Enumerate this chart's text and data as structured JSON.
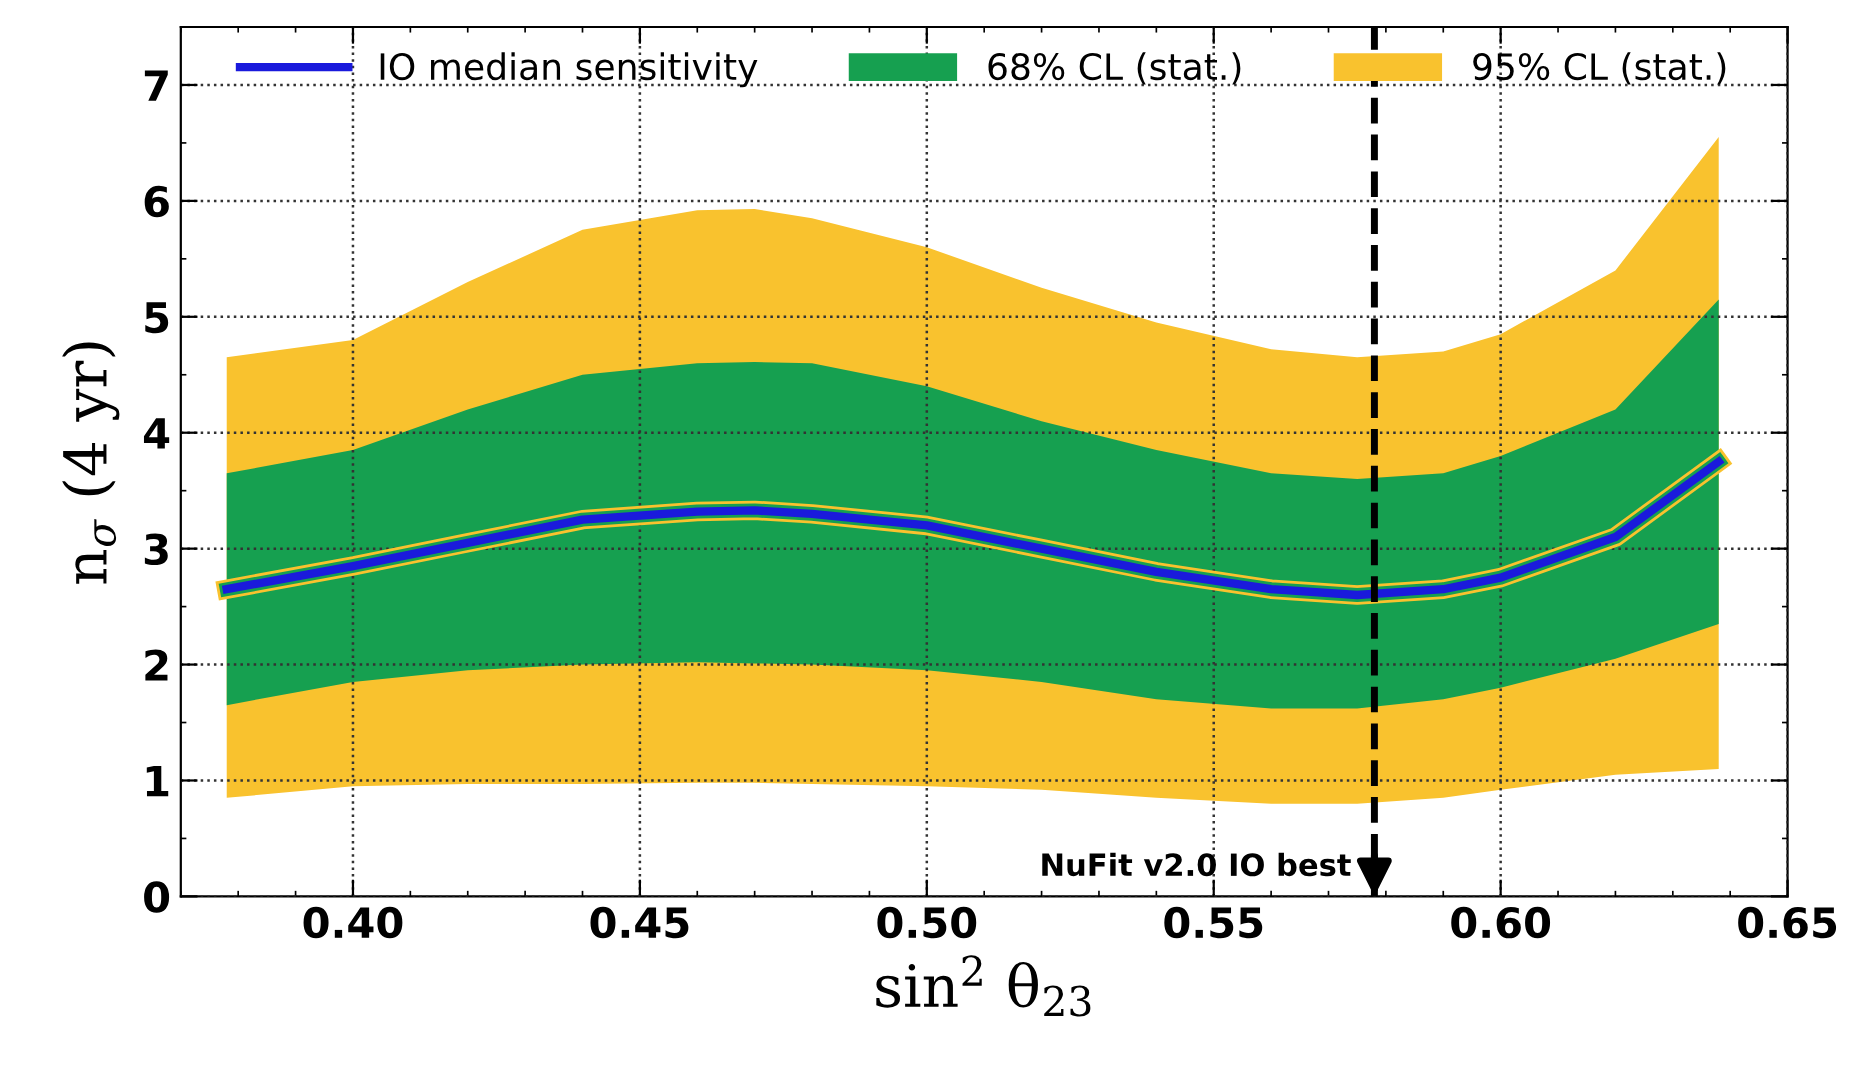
{
  "chart_data": {
    "type": "line",
    "xlabel": "sin$^{2}$ θ$_{23}$",
    "ylabel": "n$_{σ}$ (4 yr)",
    "x": [
      0.378,
      0.4,
      0.42,
      0.44,
      0.46,
      0.47,
      0.48,
      0.5,
      0.52,
      0.54,
      0.56,
      0.575,
      0.59,
      0.6,
      0.62,
      0.638
    ],
    "series": [
      {
        "name": "IO median sensitivity",
        "color": "#1a1adc",
        "values": [
          2.65,
          2.85,
          3.05,
          3.25,
          3.32,
          3.33,
          3.3,
          3.2,
          3.0,
          2.8,
          2.65,
          2.6,
          2.65,
          2.75,
          3.1,
          3.75
        ]
      },
      {
        "name": "68% CL (stat.)",
        "color": "#16a050",
        "values": [
          2.65,
          2.85,
          3.05,
          3.25,
          3.32,
          3.33,
          3.3,
          3.2,
          3.0,
          2.8,
          2.65,
          2.6,
          2.65,
          2.75,
          3.1,
          3.75
        ],
        "lower": [
          1.65,
          1.85,
          1.95,
          2.0,
          2.02,
          2.01,
          2.0,
          1.95,
          1.85,
          1.7,
          1.62,
          1.62,
          1.7,
          1.8,
          2.05,
          2.35
        ],
        "upper": [
          3.65,
          3.85,
          4.2,
          4.5,
          4.6,
          4.61,
          4.6,
          4.4,
          4.1,
          3.85,
          3.65,
          3.6,
          3.65,
          3.8,
          4.2,
          5.15
        ]
      },
      {
        "name": "95% CL (stat.)",
        "color": "#f9c22e",
        "values": [
          2.65,
          2.85,
          3.05,
          3.25,
          3.32,
          3.33,
          3.3,
          3.2,
          3.0,
          2.8,
          2.65,
          2.6,
          2.65,
          2.75,
          3.1,
          3.75
        ],
        "lower": [
          0.85,
          0.95,
          0.97,
          0.97,
          0.98,
          0.98,
          0.97,
          0.95,
          0.92,
          0.85,
          0.8,
          0.8,
          0.85,
          0.92,
          1.05,
          1.1
        ],
        "upper": [
          4.65,
          4.8,
          5.3,
          5.75,
          5.92,
          5.93,
          5.85,
          5.6,
          5.25,
          4.95,
          4.72,
          4.65,
          4.7,
          4.85,
          5.4,
          6.55
        ]
      }
    ],
    "xlim": [
      0.37,
      0.65
    ],
    "xticks": [
      {
        "value": 0.4,
        "label": "0.40"
      },
      0.45,
      {
        "value": 0.5,
        "label": "0.50"
      },
      0.55,
      {
        "value": 0.6,
        "label": "0.60"
      },
      0.65
    ],
    "ylim": [
      0,
      7.5
    ],
    "yticks": [
      0,
      1,
      2,
      3,
      4,
      5,
      6,
      7
    ],
    "ref_lines": [
      {
        "axis": "x",
        "value": 0.578,
        "label": "NuFit v2.0 IO best",
        "color": "#000000",
        "line_style": "dashed"
      }
    ],
    "grid": true,
    "legend": "top",
    "line_style": "solid",
    "marker": "none"
  }
}
